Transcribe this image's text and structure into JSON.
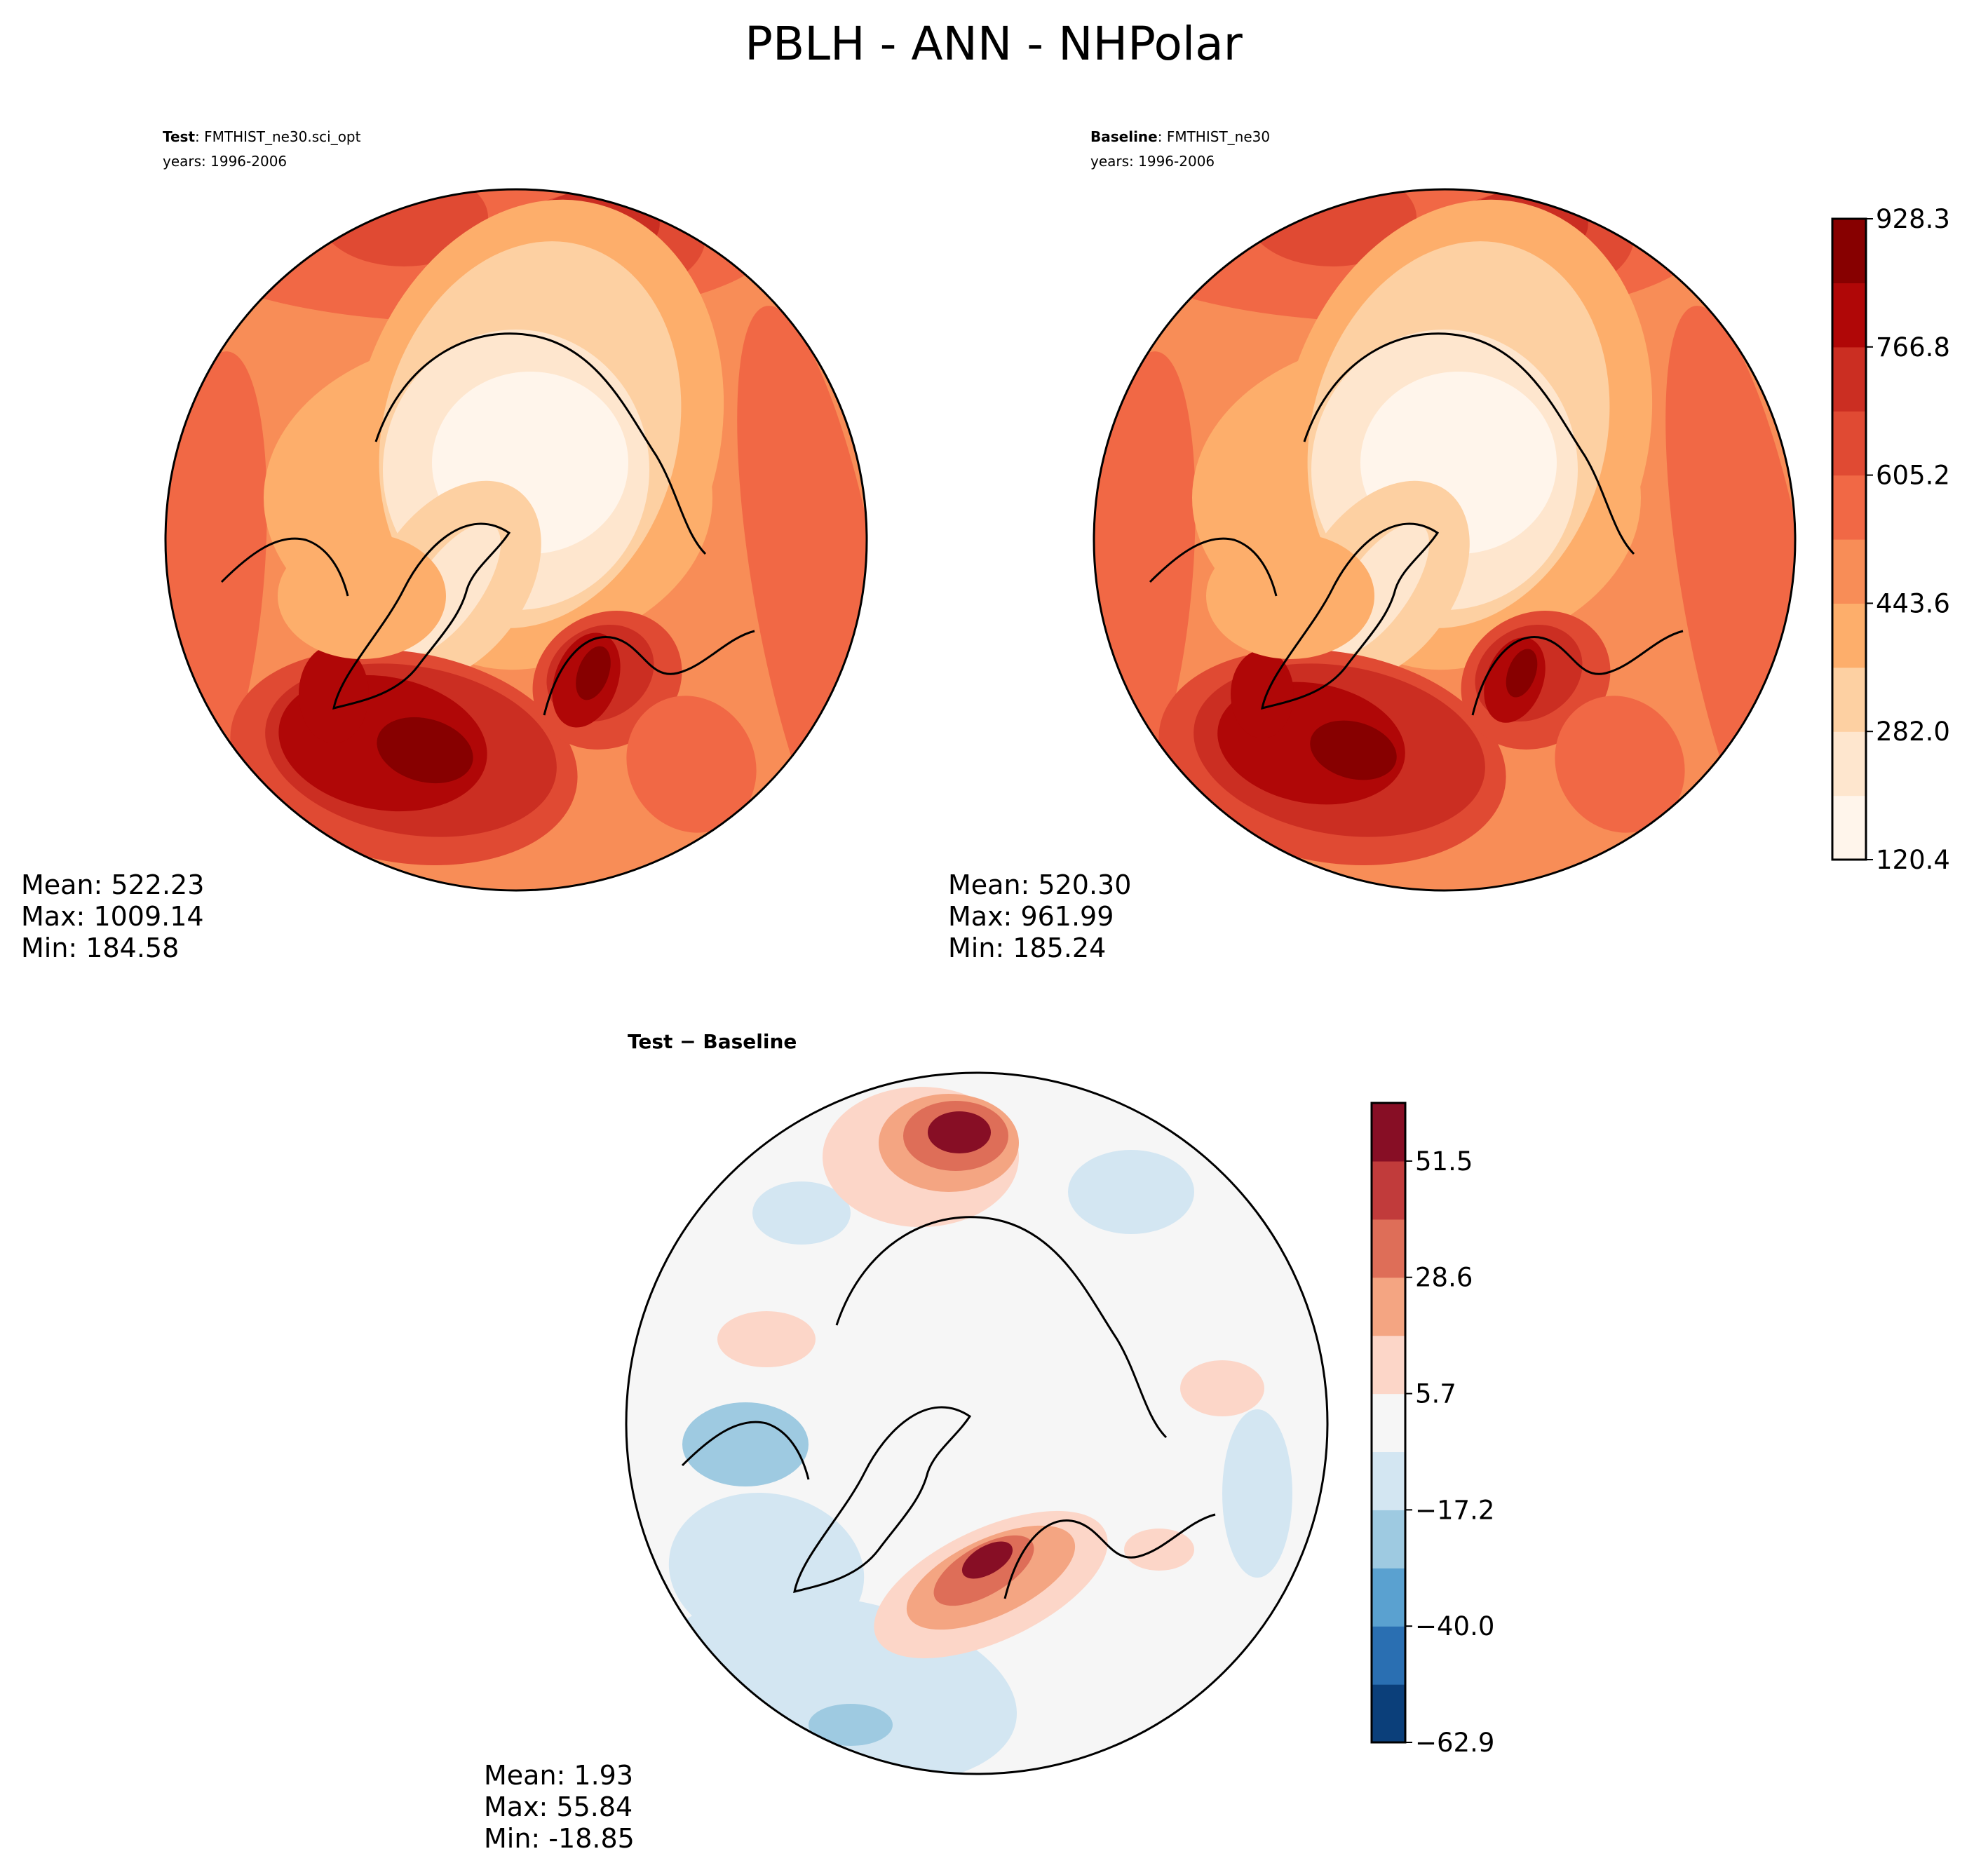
{
  "figure": {
    "title": "PBLH - ANN - NHPolar"
  },
  "colors": {
    "seq": [
      "#fff5eb",
      "#fee6ce",
      "#fdd0a2",
      "#fdae6b",
      "#f88d57",
      "#f16845",
      "#e04a33",
      "#cb2e22",
      "#b00707",
      "#870000"
    ],
    "div": [
      "#0b3f7a",
      "#2a6fb2",
      "#5aa1d0",
      "#9ecae1",
      "#d3e6f2",
      "#f6f6f6",
      "#fcd6c8",
      "#f4a582",
      "#de6e58",
      "#c13b3b",
      "#870e25"
    ],
    "land_outline": "#000000"
  },
  "panels": {
    "test": {
      "title_bold": "Test",
      "title_rest": ": FMTHIST_ne30.sci_opt",
      "years": "years: 1996-2006",
      "stats": {
        "mean": "Mean: 522.23",
        "max": "Max: 1009.14",
        "min": "Min: 184.58"
      }
    },
    "baseline": {
      "title_bold": "Baseline",
      "title_rest": ": FMTHIST_ne30",
      "years": "years: 1996-2006",
      "stats": {
        "mean": "Mean: 520.30",
        "max": "Max: 961.99",
        "min": "Min: 185.24"
      }
    },
    "diff": {
      "title": "Test − Baseline",
      "stats": {
        "mean": "Mean:  1.93",
        "max": "Max: 55.84",
        "min": "Min: -18.85"
      }
    }
  },
  "colorbars": {
    "top": {
      "ticks": [
        "120.4",
        "282.0",
        "443.6",
        "605.2",
        "766.8",
        "928.3"
      ]
    },
    "bottom": {
      "ticks": [
        "−62.9",
        "−40.0",
        "−17.2",
        "5.7",
        "28.6",
        "51.5"
      ]
    }
  },
  "chart_data": [
    {
      "type": "heatmap",
      "projection": "north-polar-stereographic",
      "name": "Test",
      "title": "Test: FMTHIST_ne30.sci_opt",
      "variable": "PBLH",
      "color_range": [
        120.4,
        1009.0
      ],
      "color_levels": [
        120.4,
        201.2,
        282.0,
        362.8,
        443.6,
        524.4,
        605.2,
        686.0,
        766.8,
        847.6,
        928.3,
        1009.0
      ],
      "stats": {
        "mean": 522.23,
        "max": 1009.14,
        "min": 184.58
      }
    },
    {
      "type": "heatmap",
      "projection": "north-polar-stereographic",
      "name": "Baseline",
      "title": "Baseline: FMTHIST_ne30",
      "variable": "PBLH",
      "color_range": [
        120.4,
        1009.0
      ],
      "color_levels": [
        120.4,
        201.2,
        282.0,
        362.8,
        443.6,
        524.4,
        605.2,
        686.0,
        766.8,
        847.6,
        928.3,
        1009.0
      ],
      "stats": {
        "mean": 520.3,
        "max": 961.99,
        "min": 185.24
      }
    },
    {
      "type": "heatmap",
      "projection": "north-polar-stereographic",
      "name": "Test − Baseline",
      "title": "Test − Baseline",
      "variable": "PBLH",
      "color_range": [
        -62.9,
        74.4
      ],
      "color_levels": [
        -62.9,
        -51.5,
        -40.0,
        -28.6,
        -17.2,
        -5.7,
        5.7,
        17.2,
        28.6,
        40.0,
        51.5,
        62.9
      ],
      "stats": {
        "mean": 1.93,
        "max": 55.84,
        "min": -18.85
      }
    }
  ]
}
